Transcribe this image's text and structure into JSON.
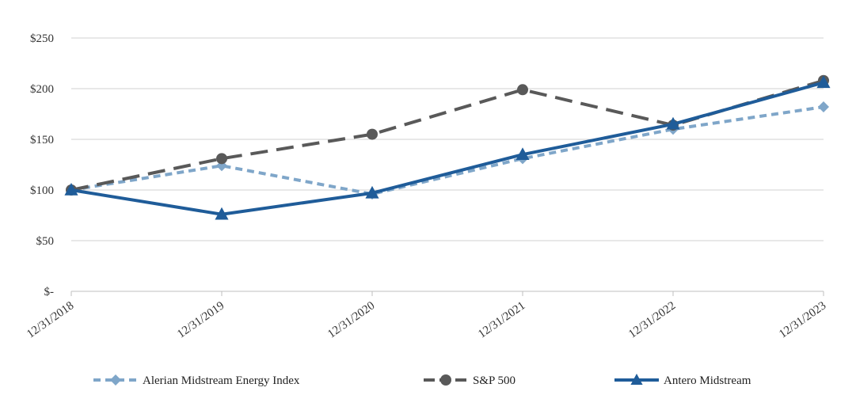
{
  "chart_data": {
    "type": "line",
    "title": "",
    "xlabel": "",
    "ylabel": "",
    "categories": [
      "12/31/2018",
      "12/31/2019",
      "12/31/2020",
      "12/31/2021",
      "12/31/2022",
      "12/31/2023"
    ],
    "y_ticks": [
      "$-",
      "$50",
      "$100",
      "$150",
      "$200",
      "$250"
    ],
    "ylim": [
      0,
      250
    ],
    "grid": true,
    "legend_position": "bottom",
    "series": [
      {
        "name": "Alerian Midstream Energy Index",
        "values": [
          100,
          124,
          96,
          131,
          160,
          182
        ],
        "color": "#7fa6c9",
        "line_style": "dashed-short",
        "marker": "diamond"
      },
      {
        "name": "S&P 500",
        "values": [
          100,
          131,
          155,
          199,
          164,
          208
        ],
        "color": "#595959",
        "line_style": "dashed-long",
        "marker": "circle"
      },
      {
        "name": "Antero Midstream",
        "values": [
          100,
          76,
          97,
          135,
          165,
          206
        ],
        "color": "#1f5c99",
        "line_style": "solid",
        "marker": "triangle"
      }
    ]
  }
}
